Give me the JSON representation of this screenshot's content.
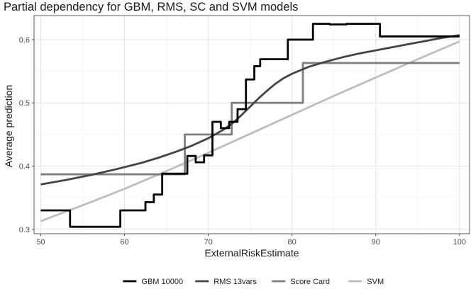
{
  "chart_data": {
    "type": "line",
    "title": "Partial dependency for GBM, RMS, SC and SVM models",
    "xlabel": "ExternalRiskEstimate",
    "ylabel": "Average prediction",
    "xlim": [
      49.2,
      101.2
    ],
    "ylim": [
      0.293,
      0.638
    ],
    "x_ticks": [
      50,
      60,
      70,
      80,
      90,
      100
    ],
    "y_ticks": [
      0.3,
      0.4,
      0.5,
      0.6
    ],
    "x_tick_labels": [
      "50",
      "60",
      "70",
      "80",
      "90",
      "100"
    ],
    "y_tick_labels": [
      "0.3",
      "0.4",
      "0.5",
      "0.6"
    ],
    "legend_position": "bottom",
    "series": [
      {
        "name": "GBM 10000",
        "color": "#000000",
        "step": true,
        "points": [
          [
            50,
            0.33
          ],
          [
            53.5,
            0.33
          ],
          [
            53.5,
            0.304
          ],
          [
            59.5,
            0.304
          ],
          [
            59.5,
            0.33
          ],
          [
            62.5,
            0.33
          ],
          [
            62.5,
            0.343
          ],
          [
            63.5,
            0.343
          ],
          [
            63.5,
            0.355
          ],
          [
            64.5,
            0.355
          ],
          [
            64.5,
            0.388
          ],
          [
            67.5,
            0.388
          ],
          [
            67.5,
            0.416
          ],
          [
            68.5,
            0.416
          ],
          [
            68.5,
            0.406
          ],
          [
            69.5,
            0.406
          ],
          [
            69.5,
            0.417
          ],
          [
            70.5,
            0.417
          ],
          [
            70.5,
            0.47
          ],
          [
            71.5,
            0.47
          ],
          [
            71.5,
            0.46
          ],
          [
            72.5,
            0.46
          ],
          [
            72.5,
            0.47
          ],
          [
            73.5,
            0.47
          ],
          [
            73.5,
            0.49
          ],
          [
            74.5,
            0.49
          ],
          [
            74.5,
            0.537
          ],
          [
            75.5,
            0.537
          ],
          [
            75.5,
            0.558
          ],
          [
            76.2,
            0.558
          ],
          [
            76.2,
            0.569
          ],
          [
            79.5,
            0.569
          ],
          [
            79.5,
            0.6
          ],
          [
            82.5,
            0.6
          ],
          [
            82.5,
            0.625
          ],
          [
            84.5,
            0.625
          ],
          [
            84.5,
            0.624
          ],
          [
            86.5,
            0.624
          ],
          [
            86.5,
            0.625
          ],
          [
            90.5,
            0.625
          ],
          [
            90.5,
            0.605
          ],
          [
            100,
            0.605
          ]
        ]
      },
      {
        "name": "RMS 13vars",
        "color": "#444444",
        "step": false,
        "points": [
          [
            50,
            0.371
          ],
          [
            53,
            0.378
          ],
          [
            56,
            0.386
          ],
          [
            59,
            0.395
          ],
          [
            62,
            0.405
          ],
          [
            64,
            0.413
          ],
          [
            66,
            0.422
          ],
          [
            68,
            0.432
          ],
          [
            70,
            0.444
          ],
          [
            72,
            0.459
          ],
          [
            73,
            0.469
          ],
          [
            74,
            0.481
          ],
          [
            75,
            0.494
          ],
          [
            76,
            0.507
          ],
          [
            77,
            0.519
          ],
          [
            78,
            0.53
          ],
          [
            79,
            0.539
          ],
          [
            80,
            0.546
          ],
          [
            82,
            0.557
          ],
          [
            84,
            0.565
          ],
          [
            86,
            0.572
          ],
          [
            88,
            0.578
          ],
          [
            90,
            0.583
          ],
          [
            92,
            0.588
          ],
          [
            94,
            0.593
          ],
          [
            96,
            0.598
          ],
          [
            98,
            0.603
          ],
          [
            100,
            0.607
          ]
        ]
      },
      {
        "name": "Score Card",
        "color": "#7f7f7f",
        "step": true,
        "points": [
          [
            50,
            0.387
          ],
          [
            67.2,
            0.387
          ],
          [
            67.2,
            0.45
          ],
          [
            72.8,
            0.45
          ],
          [
            72.8,
            0.5
          ],
          [
            81.3,
            0.5
          ],
          [
            81.3,
            0.563
          ],
          [
            100,
            0.563
          ]
        ]
      },
      {
        "name": "SVM",
        "color": "#bdbdbd",
        "step": false,
        "points": [
          [
            50,
            0.313
          ],
          [
            55,
            0.338
          ],
          [
            60,
            0.364
          ],
          [
            65,
            0.392
          ],
          [
            70,
            0.421
          ],
          [
            75,
            0.451
          ],
          [
            80,
            0.481
          ],
          [
            85,
            0.511
          ],
          [
            90,
            0.54
          ],
          [
            95,
            0.569
          ],
          [
            100,
            0.597
          ]
        ]
      }
    ]
  }
}
